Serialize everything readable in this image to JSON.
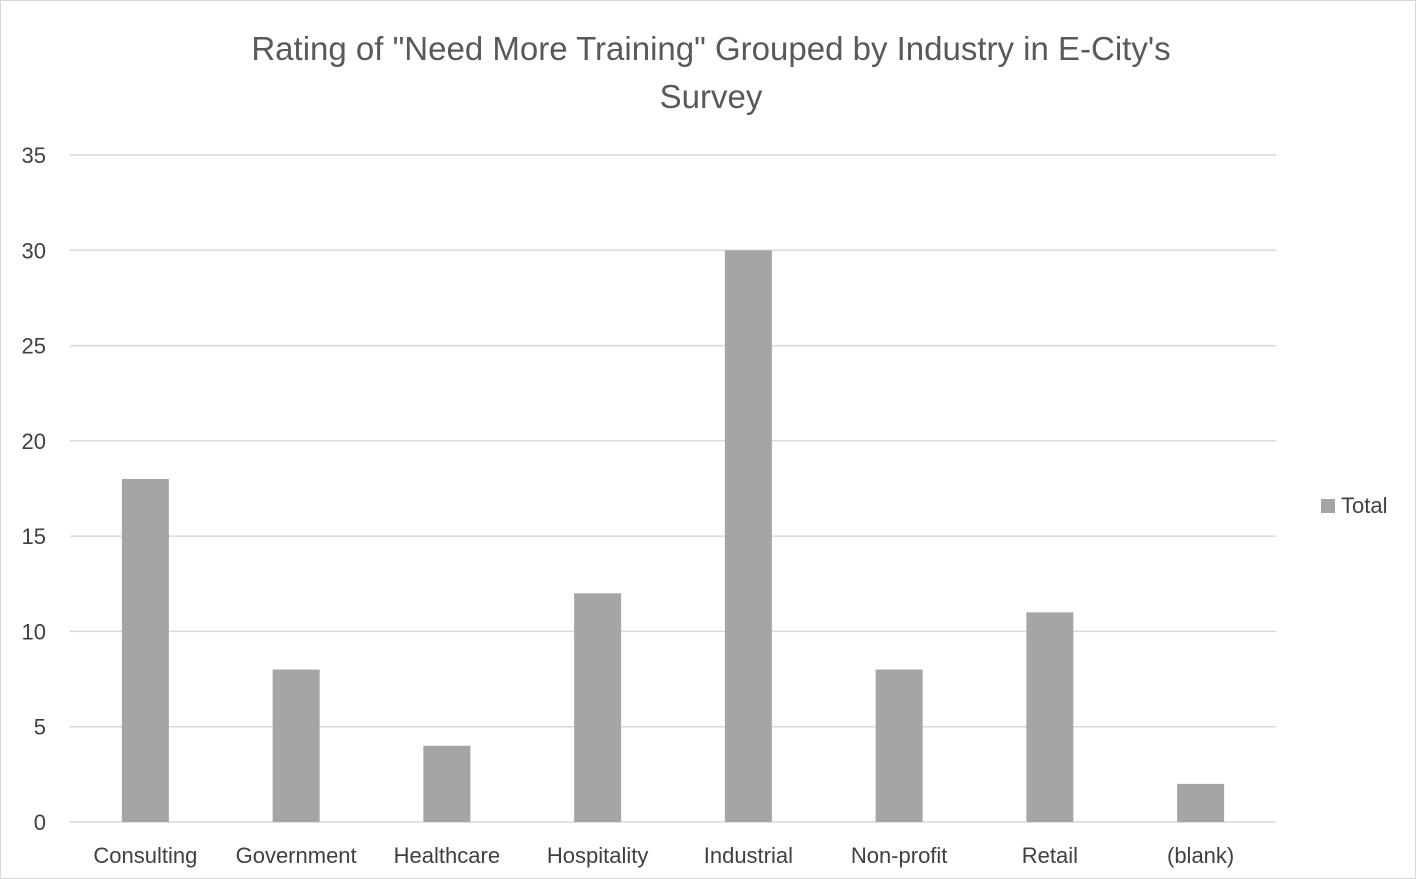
{
  "chart_data": {
    "type": "bar",
    "title": "Rating of \"Need More Training\" Grouped by Industry in E-City's Survey",
    "title_lines": [
      "Rating of \"Need More Training\" Grouped by Industry in E-City's",
      "Survey"
    ],
    "categories": [
      "Consulting",
      "Government",
      "Healthcare",
      "Hospitality",
      "Industrial",
      "Non-profit",
      "Retail",
      "(blank)"
    ],
    "series": [
      {
        "name": "Total",
        "values": [
          18,
          8,
          4,
          12,
          30,
          8,
          11,
          2
        ],
        "color": "#a5a5a5"
      }
    ],
    "xlabel": "",
    "ylabel": "",
    "ylim": [
      0,
      35
    ],
    "yticks": [
      0,
      5,
      10,
      15,
      20,
      25,
      30,
      35
    ],
    "grid": true,
    "legend_position": "right",
    "colors": {
      "bar": "#a5a5a5",
      "grid": "#d9d9d9",
      "title": "#595959",
      "ticks": "#404040"
    }
  }
}
